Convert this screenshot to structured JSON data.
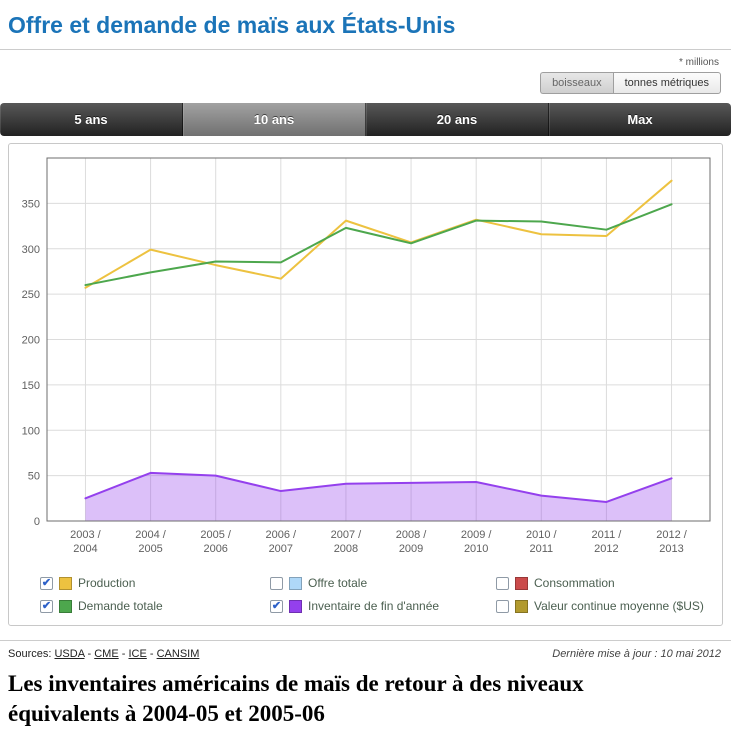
{
  "page": {
    "title": "Offre et demande de maïs aux États-Unis",
    "units_note": "* millions"
  },
  "unit_toggle": {
    "options": [
      {
        "label": "boisseaux",
        "active": false
      },
      {
        "label": "tonnes métriques",
        "active": true
      }
    ]
  },
  "range_tabs": {
    "tabs": [
      {
        "label": "5 ans",
        "active": false
      },
      {
        "label": "10 ans",
        "active": true
      },
      {
        "label": "20 ans",
        "active": false
      },
      {
        "label": "Max",
        "active": false
      }
    ]
  },
  "chart_data": {
    "type": "line",
    "title": "",
    "xlabel": "",
    "ylabel": "",
    "ylim": [
      0,
      400
    ],
    "ytick_interval": 50,
    "grid": true,
    "legend_position": "bottom",
    "categories": [
      "2003 / 2004",
      "2004 / 2005",
      "2005 / 2006",
      "2006 / 2007",
      "2007 / 2008",
      "2008 / 2009",
      "2009 / 2010",
      "2010 / 2011",
      "2011 / 2012",
      "2012 / 2013"
    ],
    "series": [
      {
        "name": "Production",
        "color": "#edc240",
        "area": false,
        "values": [
          257,
          299,
          282,
          267,
          331,
          307,
          332,
          316,
          314,
          375
        ]
      },
      {
        "name": "Demande totale",
        "color": "#4da74d",
        "area": false,
        "values": [
          260,
          274,
          286,
          285,
          323,
          306,
          331,
          330,
          321,
          349
        ]
      },
      {
        "name": "Inventaire de fin d'année",
        "color": "#9440ed",
        "area": true,
        "values": [
          25,
          53,
          50,
          33,
          41,
          42,
          43,
          28,
          21,
          47
        ]
      }
    ]
  },
  "legend": {
    "items": [
      {
        "label": "Production",
        "color": "#edc240",
        "checked": true
      },
      {
        "label": "Offre totale",
        "color": "#afd8f8",
        "checked": false
      },
      {
        "label": "Consommation",
        "color": "#cb4b4b",
        "checked": false
      },
      {
        "label": "Demande totale",
        "color": "#4da74d",
        "checked": true
      },
      {
        "label": "Inventaire de fin d'année",
        "color": "#9440ed",
        "checked": true
      },
      {
        "label": "Valeur continue moyenne ($US)",
        "color": "#b29a2e",
        "checked": false
      }
    ]
  },
  "icons": {
    "check": "✔"
  },
  "footer": {
    "sources_label": "Sources:",
    "sources_separator": " - ",
    "sources": [
      "USDA",
      "CME",
      "ICE",
      "CANSIM"
    ],
    "updated": "Dernière mise à jour : 10 mai 2012"
  },
  "headline": "Les inventaires américains de maïs de retour à des niveaux équivalents à 2004-05 et 2005-06"
}
